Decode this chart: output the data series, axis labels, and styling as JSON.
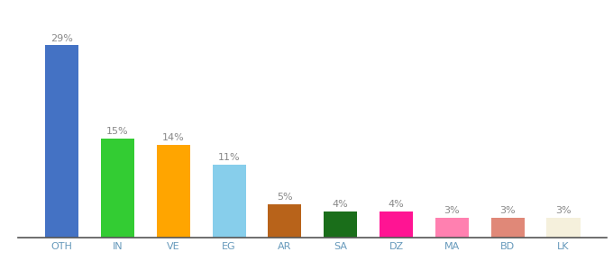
{
  "categories": [
    "OTH",
    "IN",
    "VE",
    "EG",
    "AR",
    "SA",
    "DZ",
    "MA",
    "BD",
    "LK"
  ],
  "values": [
    29,
    15,
    14,
    11,
    5,
    4,
    4,
    3,
    3,
    3
  ],
  "bar_colors": [
    "#4472C4",
    "#33CC33",
    "#FFA500",
    "#87CEEB",
    "#B8631A",
    "#1A6E1A",
    "#FF1493",
    "#FF80B0",
    "#E08878",
    "#F5F0DC"
  ],
  "ylim": [
    0,
    33
  ],
  "background_color": "#ffffff",
  "tick_fontsize": 8,
  "label_fontsize": 8,
  "label_color": "#888888"
}
